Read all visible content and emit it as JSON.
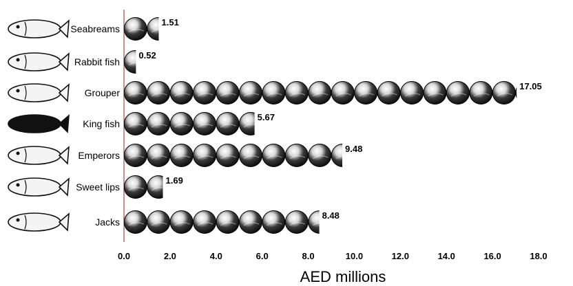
{
  "chart_data": {
    "type": "bar",
    "categories": [
      "Seabreams",
      "Rabbit fish",
      "Grouper",
      "King fish",
      "Emperors",
      "Sweet lips",
      "Jacks"
    ],
    "values": [
      1.51,
      0.52,
      17.05,
      5.67,
      9.48,
      1.69,
      8.48
    ],
    "value_labels": [
      "1.51",
      "0.52",
      "17.05",
      "5.67",
      "9.48",
      "1.69",
      "8.48"
    ],
    "orientation": "horizontal",
    "xlabel": "AED millions",
    "xlim": [
      0,
      18
    ],
    "xticks": [
      "0.0",
      "2.0",
      "4.0",
      "6.0",
      "8.0",
      "10.0",
      "12.0",
      "14.0",
      "16.0",
      "18.0"
    ],
    "grid": false,
    "colors": {
      "ball": "#1a1a1a",
      "highlight": "#e9e9e9",
      "axis": "#c9958a"
    }
  }
}
